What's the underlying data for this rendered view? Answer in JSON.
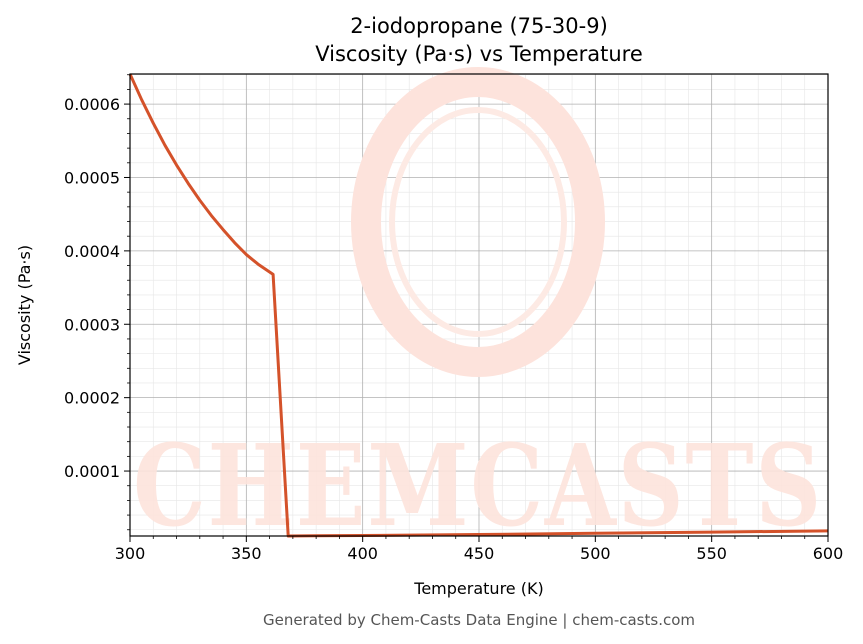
{
  "header": {
    "title_line1": "2-iodopropane (75-30-9)",
    "title_line2": "Viscosity (Pa·s) vs Temperature"
  },
  "footer": {
    "text": "Generated by Chem-Casts Data Engine | chem-casts.com"
  },
  "watermark": {
    "text": "CHEMCASTS",
    "color": "#fde3dc"
  },
  "colors": {
    "line": "#d4522a",
    "grid_major": "#b0b0b0",
    "grid_minor": "#e6e6e6"
  },
  "chart_data": {
    "type": "line",
    "xlabel": "Temperature (K)",
    "ylabel": "Viscosity (Pa·s)",
    "xlim": [
      300,
      600
    ],
    "ylim": [
      1.15e-05,
      0.000641
    ],
    "xticks": [
      300,
      350,
      400,
      450,
      500,
      550,
      600
    ],
    "xtick_labels": [
      "300",
      "350",
      "400",
      "450",
      "500",
      "550",
      "600"
    ],
    "yticks": [
      0.0001,
      0.0002,
      0.0003,
      0.0004,
      0.0005,
      0.0006
    ],
    "ytick_labels": [
      "0.0001",
      "0.0002",
      "0.0003",
      "0.0004",
      "0.0005",
      "0.0006"
    ],
    "grid": true,
    "series": [
      {
        "x": [
          300,
          305,
          310,
          315,
          320,
          325,
          330,
          335,
          340,
          345,
          350,
          355,
          361.5,
          368,
          380,
          400,
          450,
          500,
          550,
          600
        ],
        "y": [
          0.000641,
          0.000606,
          0.000574,
          0.000544,
          0.000517,
          0.000492,
          0.000469,
          0.000448,
          0.000429,
          0.000411,
          0.000395,
          0.000382,
          0.000368,
          1.15e-05,
          1.18e-05,
          1.22e-05,
          1.35e-05,
          1.52e-05,
          1.68e-05,
          1.85e-05
        ]
      }
    ]
  }
}
